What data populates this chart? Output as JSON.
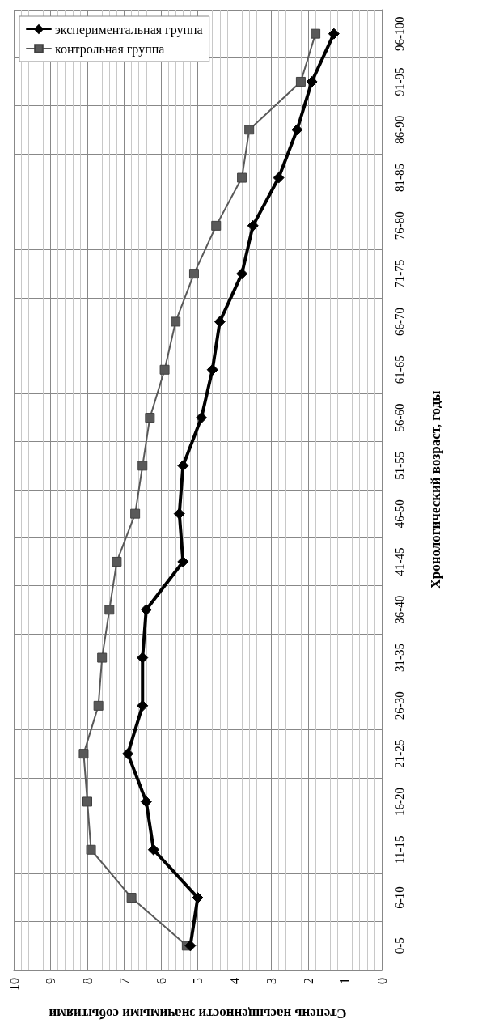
{
  "chart_data": {
    "type": "line",
    "orientation": "horizontal",
    "xlabel": "Степень насыщенности значимыми событиями",
    "ylabel": "Хронологический возраст, годы",
    "categories": [
      "96-100",
      "91-95",
      "86-90",
      "81-85",
      "76-80",
      "71-75",
      "66-70",
      "61-65",
      "56-60",
      "51-55",
      "46-50",
      "41-45",
      "36-40",
      "31-35",
      "26-30",
      "21-25",
      "16-20",
      "11-15",
      "6-10",
      "0-5"
    ],
    "series": [
      {
        "name": "экспериментальная группа",
        "color": "#000000",
        "marker": "diamond",
        "values": [
          1.3,
          1.9,
          2.3,
          2.8,
          3.5,
          3.8,
          4.4,
          4.6,
          4.9,
          5.4,
          5.5,
          5.4,
          6.4,
          6.5,
          6.5,
          6.9,
          6.4,
          6.2,
          5.0,
          5.2
        ]
      },
      {
        "name": "контрольная группа",
        "color": "#595959",
        "marker": "square",
        "values": [
          1.8,
          2.2,
          3.6,
          3.8,
          4.5,
          5.1,
          5.6,
          5.9,
          6.3,
          6.5,
          6.7,
          7.2,
          7.4,
          7.6,
          7.7,
          8.1,
          8.0,
          7.9,
          6.8,
          5.3
        ]
      }
    ],
    "xlim": [
      10,
      0
    ],
    "xticks": [
      10,
      9,
      8,
      7,
      6,
      5,
      4,
      3,
      2,
      1,
      0
    ],
    "grid": true,
    "legend": "top left"
  }
}
